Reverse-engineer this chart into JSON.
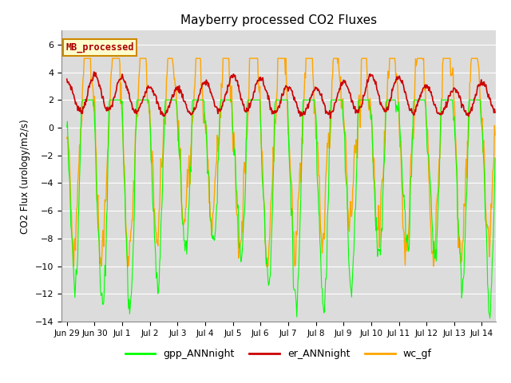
{
  "title": "Mayberry processed CO2 Fluxes",
  "ylabel": "CO2 Flux (urology/m2/s)",
  "ylim": [
    -14,
    7
  ],
  "yticks": [
    -14,
    -12,
    -10,
    -8,
    -6,
    -4,
    -2,
    0,
    2,
    4,
    6
  ],
  "background_color": "#dcdcdc",
  "figure_background": "#ffffff",
  "legend_box_label": "MB_processed",
  "legend_box_color": "#ffffcc",
  "legend_box_edge": "#cc8800",
  "line_colors": {
    "gpp_ANNnight": "#00ff00",
    "er_ANNnight": "#cc0000",
    "wc_gf": "#ffa500"
  },
  "line_widths": {
    "gpp_ANNnight": 0.8,
    "er_ANNnight": 1.2,
    "wc_gf": 1.0
  },
  "xtick_labels": [
    "Jun 29",
    "Jun 30",
    "Jul 1",
    "Jul 2",
    "Jul 3",
    "Jul 4",
    "Jul 5",
    "Jul 6",
    "Jul 7",
    "Jul 8",
    "Jul 9",
    "Jul 10",
    "Jul 11",
    "Jul 12",
    "Jul 13",
    "Jul 14"
  ],
  "xtick_positions": [
    0,
    1,
    2,
    3,
    4,
    5,
    6,
    7,
    8,
    9,
    10,
    11,
    12,
    13,
    14,
    15
  ]
}
